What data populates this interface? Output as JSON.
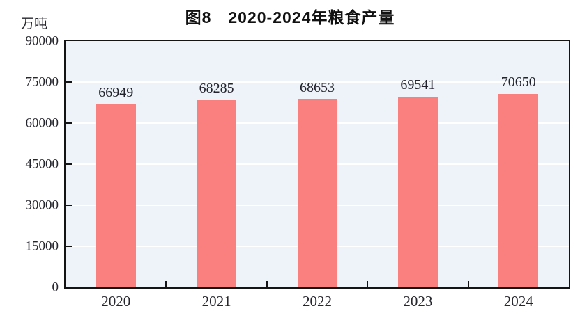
{
  "chart_data": {
    "type": "bar",
    "title": "图8　2020-2024年粮食产量",
    "unit": "万吨",
    "categories": [
      "2020",
      "2021",
      "2022",
      "2023",
      "2024"
    ],
    "values": [
      66949,
      68285,
      68653,
      69541,
      70650
    ],
    "series_name": "粮食产量",
    "xlabel": "",
    "ylabel": "万吨",
    "ylim": [
      0,
      90000
    ],
    "yticks": [
      0,
      15000,
      30000,
      45000,
      60000,
      75000,
      90000
    ],
    "grid": true,
    "legend": false,
    "data_labels": true,
    "bar_color": "#FA8080",
    "plot_background": "#EDF3F8",
    "gridline_color": "#FFFFFF",
    "axis_color": "#141414",
    "text_color": "#26262E"
  }
}
